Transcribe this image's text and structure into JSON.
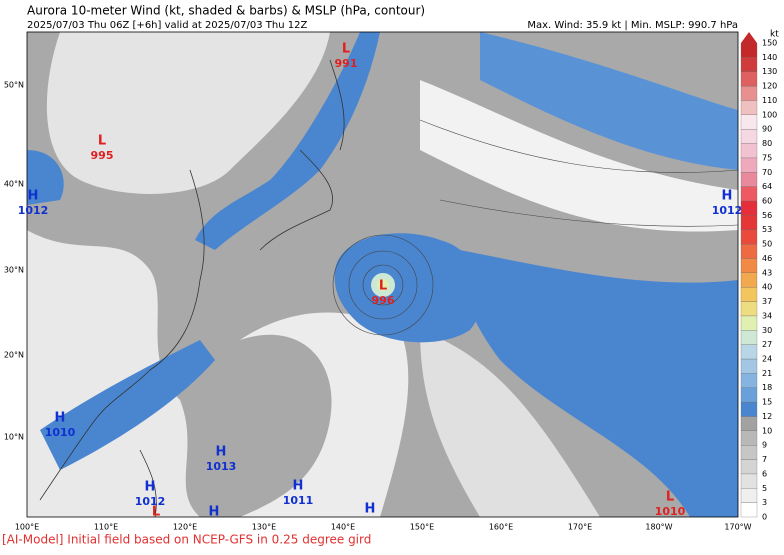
{
  "header": {
    "title": "Aurora 10-meter Wind (kt, shaded & barbs) & MSLP (hPa, contour)",
    "subtitle": "2025/07/03 Thu 06Z [+6h] valid at 2025/07/03 Thu 12Z",
    "stats": "Max. Wind: 35.9 kt | Min. MSLP: 990.7 hPa"
  },
  "footer": "[AI-Model] Initial field based on NCEP-GFS in 0.25 degree gird",
  "map": {
    "lon_labels": [
      "100°E",
      "110°E",
      "120°E",
      "130°E",
      "140°E",
      "150°E",
      "160°E",
      "170°E",
      "180°W",
      "170°W"
    ],
    "lat_labels": [
      "50°N",
      "40°N",
      "30°N",
      "20°N",
      "10°N"
    ],
    "centers": [
      {
        "kind": "L",
        "value": 991
      },
      {
        "kind": "L",
        "value": 995
      },
      {
        "kind": "H",
        "value": 1012
      },
      {
        "kind": "H",
        "value": 1012
      },
      {
        "kind": "L",
        "value": 996
      },
      {
        "kind": "H",
        "value": 1010
      },
      {
        "kind": "H",
        "value": 1013
      },
      {
        "kind": "H",
        "value": 1012
      },
      {
        "kind": "H",
        "value": 1011
      },
      {
        "kind": "L",
        "value": 1010
      },
      {
        "kind": "L"
      },
      {
        "kind": "H"
      },
      {
        "kind": "H"
      }
    ]
  },
  "colorbar": {
    "unit": "kt",
    "levels": [
      0,
      3,
      5,
      6,
      7,
      9,
      10,
      12,
      15,
      18,
      21,
      24,
      27,
      30,
      34,
      37,
      40,
      43,
      46,
      50,
      53,
      56,
      60,
      64,
      70,
      75,
      80,
      90,
      100,
      110,
      120,
      130,
      140,
      150
    ],
    "colors": [
      "#ffffff",
      "#efefef",
      "#e2e2e2",
      "#d4d4d4",
      "#c6c6c6",
      "#b8b8b8",
      "#a2a2a2",
      "#4a86d0",
      "#6aa0da",
      "#86b4e0",
      "#a2c6e4",
      "#b8d6e6",
      "#cde8d4",
      "#e0f0b0",
      "#eedc80",
      "#f2c65c",
      "#f2a84e",
      "#f08a46",
      "#ee6a42",
      "#ea4a3c",
      "#e43636",
      "#e42e3a",
      "#ee5a62",
      "#e88a9c",
      "#eeaabc",
      "#f2c2d0",
      "#f6d8e2",
      "#f8e8ee",
      "#f0c0c0",
      "#e89090",
      "#de6060",
      "#d03c3c",
      "#c42828"
    ]
  }
}
